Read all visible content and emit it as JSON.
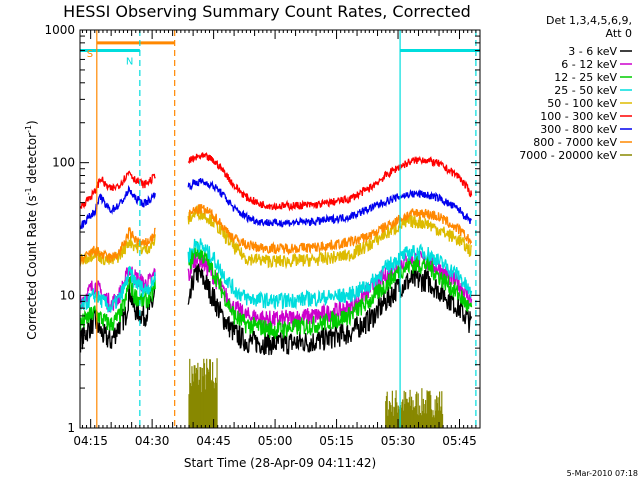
{
  "chart_data": {
    "type": "line",
    "title": "HESSI Observing Summary Count Rates, Corrected",
    "xlabel": "Start Time (28-Apr-09 04:11:42)",
    "ylabel_main": "Corrected Count Rate (s",
    "ylabel_sup1": "-1",
    "ylabel_mid": " detector",
    "ylabel_sup2": "-1",
    "ylabel_end": ")",
    "y_scale": "log",
    "ylim": [
      1,
      1000
    ],
    "y_ticks": [
      {
        "value": 1,
        "label": "1"
      },
      {
        "value": 10,
        "label": "10"
      },
      {
        "value": 100,
        "label": "100"
      },
      {
        "value": 1000,
        "label": "1000"
      }
    ],
    "x_start_min": 252.4,
    "x_end_min": 350,
    "x_ticks": [
      {
        "value": 255,
        "label": "04:15"
      },
      {
        "value": 270,
        "label": "04:30"
      },
      {
        "value": 285,
        "label": "04:45"
      },
      {
        "value": 300,
        "label": "05:00"
      },
      {
        "value": 315,
        "label": "05:15"
      },
      {
        "value": 330,
        "label": "05:30"
      },
      {
        "value": 345,
        "label": "05:45"
      }
    ],
    "legend_header": [
      "Det 1,3,4,5,6,9,",
      "Att 0"
    ],
    "legend_position": "right",
    "gaps": [
      [
        270.8,
        278.8
      ]
    ],
    "series": [
      {
        "name": "3 - 6 keV",
        "color": "#000000",
        "points": [
          [
            252.4,
            4.5
          ],
          [
            256,
            6.5
          ],
          [
            258,
            5
          ],
          [
            260,
            4.5
          ],
          [
            262,
            6
          ],
          [
            263.5,
            7
          ],
          [
            264.5,
            11
          ],
          [
            265.5,
            8
          ],
          [
            268,
            7
          ],
          [
            270,
            8.5
          ],
          [
            270.7,
            11
          ],
          [
            279,
            8
          ],
          [
            280,
            13
          ],
          [
            281,
            15
          ],
          [
            283,
            12.5
          ],
          [
            285,
            9.5
          ],
          [
            287,
            7
          ],
          [
            290,
            5.2
          ],
          [
            293,
            4.5
          ],
          [
            300,
            4.3
          ],
          [
            310,
            4.5
          ],
          [
            318,
            5.2
          ],
          [
            323,
            6.5
          ],
          [
            327,
            9
          ],
          [
            330,
            11.5
          ],
          [
            333,
            13
          ],
          [
            337,
            13
          ],
          [
            340,
            11
          ],
          [
            345,
            8
          ],
          [
            348,
            6
          ]
        ]
      },
      {
        "name": "6 - 12 keV",
        "color": "#cc00cc",
        "points": [
          [
            252.4,
            9
          ],
          [
            256,
            12
          ],
          [
            258,
            10
          ],
          [
            260,
            8.5
          ],
          [
            262,
            10
          ],
          [
            263.5,
            13
          ],
          [
            264.5,
            16
          ],
          [
            265.5,
            14
          ],
          [
            268,
            12
          ],
          [
            270,
            13
          ],
          [
            270.7,
            15.5
          ],
          [
            279,
            14
          ],
          [
            280,
            18
          ],
          [
            281,
            20
          ],
          [
            283,
            17
          ],
          [
            285,
            14
          ],
          [
            287,
            11
          ],
          [
            290,
            8
          ],
          [
            293,
            7
          ],
          [
            300,
            6.5
          ],
          [
            310,
            7
          ],
          [
            318,
            8
          ],
          [
            323,
            11
          ],
          [
            327,
            14
          ],
          [
            330,
            17
          ],
          [
            333,
            19
          ],
          [
            337,
            18
          ],
          [
            340,
            16
          ],
          [
            345,
            12
          ],
          [
            348,
            9
          ]
        ]
      },
      {
        "name": "12 - 25 keV",
        "color": "#00cc00",
        "points": [
          [
            252.4,
            6
          ],
          [
            256,
            7.5
          ],
          [
            258,
            6.5
          ],
          [
            260,
            6
          ],
          [
            262,
            7
          ],
          [
            263.5,
            9
          ],
          [
            264.5,
            13
          ],
          [
            265.5,
            10
          ],
          [
            268,
            9
          ],
          [
            270,
            10
          ],
          [
            270.7,
            13
          ],
          [
            279,
            17
          ],
          [
            280,
            20
          ],
          [
            281,
            22
          ],
          [
            283,
            19
          ],
          [
            285,
            15
          ],
          [
            287,
            11
          ],
          [
            290,
            7
          ],
          [
            293,
            6
          ],
          [
            300,
            5.5
          ],
          [
            310,
            6
          ],
          [
            318,
            7
          ],
          [
            323,
            9
          ],
          [
            327,
            12
          ],
          [
            330,
            15
          ],
          [
            333,
            17
          ],
          [
            337,
            17
          ],
          [
            340,
            14
          ],
          [
            345,
            10
          ],
          [
            348,
            7.5
          ]
        ]
      },
      {
        "name": "25 - 50 keV",
        "color": "#00dddd",
        "points": [
          [
            252.4,
            8
          ],
          [
            256,
            10
          ],
          [
            258,
            9
          ],
          [
            260,
            8
          ],
          [
            262,
            9.5
          ],
          [
            263.5,
            12
          ],
          [
            264.5,
            15
          ],
          [
            265.5,
            13
          ],
          [
            268,
            11
          ],
          [
            270,
            12
          ],
          [
            270.7,
            14
          ],
          [
            279,
            20
          ],
          [
            280,
            23
          ],
          [
            281,
            25
          ],
          [
            283,
            22
          ],
          [
            285,
            19
          ],
          [
            287,
            15
          ],
          [
            290,
            11
          ],
          [
            293,
            9.5
          ],
          [
            300,
            9
          ],
          [
            310,
            9.5
          ],
          [
            318,
            10
          ],
          [
            323,
            12
          ],
          [
            327,
            16
          ],
          [
            330,
            19
          ],
          [
            333,
            21
          ],
          [
            337,
            21
          ],
          [
            340,
            18
          ],
          [
            345,
            14
          ],
          [
            348,
            10
          ]
        ]
      },
      {
        "name": "50 - 100 keV",
        "color": "#ddbb00",
        "points": [
          [
            252.4,
            18
          ],
          [
            256,
            21
          ],
          [
            258,
            19
          ],
          [
            260,
            18
          ],
          [
            262,
            20
          ],
          [
            263.5,
            23
          ],
          [
            264.5,
            26
          ],
          [
            265.5,
            24
          ],
          [
            268,
            22
          ],
          [
            270,
            24
          ],
          [
            270.7,
            26
          ],
          [
            279,
            38
          ],
          [
            280,
            40
          ],
          [
            281,
            43
          ],
          [
            283,
            40
          ],
          [
            285,
            36
          ],
          [
            287,
            30
          ],
          [
            290,
            23
          ],
          [
            293,
            19
          ],
          [
            300,
            18
          ],
          [
            310,
            18.5
          ],
          [
            318,
            20
          ],
          [
            323,
            24
          ],
          [
            327,
            29
          ],
          [
            330,
            33
          ],
          [
            333,
            36
          ],
          [
            337,
            35
          ],
          [
            340,
            31
          ],
          [
            345,
            26
          ],
          [
            348,
            21
          ]
        ]
      },
      {
        "name": "100 - 300 keV",
        "color": "#ff0000",
        "points": [
          [
            252.4,
            46
          ],
          [
            256,
            60
          ],
          [
            257.5,
            77
          ],
          [
            258.5,
            68
          ],
          [
            260,
            63
          ],
          [
            262,
            68
          ],
          [
            263.5,
            78
          ],
          [
            264.5,
            86
          ],
          [
            265.5,
            76
          ],
          [
            268,
            68
          ],
          [
            270,
            75
          ],
          [
            270.7,
            82
          ],
          [
            279,
            102
          ],
          [
            280,
            107
          ],
          [
            282,
            112
          ],
          [
            284,
            108
          ],
          [
            286,
            97
          ],
          [
            288,
            82
          ],
          [
            290,
            67
          ],
          [
            293,
            55
          ],
          [
            296,
            49
          ],
          [
            300,
            47
          ],
          [
            310,
            48
          ],
          [
            318,
            53
          ],
          [
            323,
            64
          ],
          [
            327,
            80
          ],
          [
            330,
            92
          ],
          [
            333,
            102
          ],
          [
            336,
            106
          ],
          [
            340,
            98
          ],
          [
            345,
            78
          ],
          [
            348,
            57
          ]
        ]
      },
      {
        "name": "300 - 800 keV",
        "color": "#0000ee",
        "points": [
          [
            252.4,
            33
          ],
          [
            256,
            43
          ],
          [
            257.5,
            56
          ],
          [
            258.5,
            48
          ],
          [
            260,
            44
          ],
          [
            262,
            48
          ],
          [
            263.5,
            56
          ],
          [
            264.5,
            63
          ],
          [
            265.5,
            55
          ],
          [
            268,
            49
          ],
          [
            270,
            54
          ],
          [
            270.7,
            60
          ],
          [
            279,
            66
          ],
          [
            280,
            70
          ],
          [
            282,
            72
          ],
          [
            284,
            69
          ],
          [
            286,
            63
          ],
          [
            288,
            54
          ],
          [
            290,
            45
          ],
          [
            293,
            39
          ],
          [
            296,
            36
          ],
          [
            300,
            35
          ],
          [
            310,
            36
          ],
          [
            318,
            39
          ],
          [
            323,
            45
          ],
          [
            327,
            51
          ],
          [
            330,
            55
          ],
          [
            333,
            58
          ],
          [
            336,
            58
          ],
          [
            340,
            54
          ],
          [
            345,
            44
          ],
          [
            348,
            35
          ]
        ]
      },
      {
        "name": "800 - 7000 keV",
        "color": "#ff8800",
        "points": [
          [
            252.4,
            18
          ],
          [
            256,
            22
          ],
          [
            258,
            20
          ],
          [
            260,
            19
          ],
          [
            262,
            21
          ],
          [
            263.5,
            26
          ],
          [
            264.5,
            30
          ],
          [
            265.5,
            27
          ],
          [
            268,
            24
          ],
          [
            270,
            27
          ],
          [
            270.7,
            30
          ],
          [
            279,
            40
          ],
          [
            280,
            43
          ],
          [
            282,
            45
          ],
          [
            284,
            42
          ],
          [
            286,
            37
          ],
          [
            288,
            31
          ],
          [
            290,
            27
          ],
          [
            293,
            24
          ],
          [
            296,
            23
          ],
          [
            300,
            22.5
          ],
          [
            310,
            23
          ],
          [
            318,
            25
          ],
          [
            323,
            28
          ],
          [
            327,
            33
          ],
          [
            330,
            37
          ],
          [
            333,
            41
          ],
          [
            336,
            42
          ],
          [
            340,
            39
          ],
          [
            345,
            31
          ],
          [
            348,
            25
          ]
        ]
      },
      {
        "name": "7000 - 20000 keV",
        "color": "#888800",
        "points": []
      }
    ],
    "background_bursts": [
      {
        "x0": 279,
        "x1": 286,
        "ymin": 1.8,
        "ymax": 3.5
      },
      {
        "x0": 327,
        "x1": 341,
        "ymin": 1.2,
        "ymax": 2.0
      }
    ],
    "markers": [
      {
        "kind": "segment",
        "label": "S",
        "color": "#ff8800",
        "x0": 256.5,
        "x1": 275.5,
        "y": 800
      },
      {
        "kind": "segment",
        "label": "N",
        "color": "#00dddd",
        "x0": 252.4,
        "x1": 267,
        "y": 700
      },
      {
        "kind": "segment",
        "label": "",
        "color": "#00dddd",
        "x0": 330.5,
        "x1": 350,
        "y": 700
      },
      {
        "kind": "vline_solid",
        "label": "",
        "color": "#ff8800",
        "x": 256.5
      },
      {
        "kind": "vline_dashed",
        "label": "",
        "color": "#ff8800",
        "x": 275.5
      },
      {
        "kind": "vline_dashed",
        "label": "",
        "color": "#00dddd",
        "x": 267
      },
      {
        "kind": "vline_solid",
        "label": "",
        "color": "#00dddd",
        "x": 330.5
      },
      {
        "kind": "vline_dashed",
        "label": "",
        "color": "#00dddd",
        "x": 349
      }
    ],
    "footer": "5-Mar-2010 07:18"
  }
}
